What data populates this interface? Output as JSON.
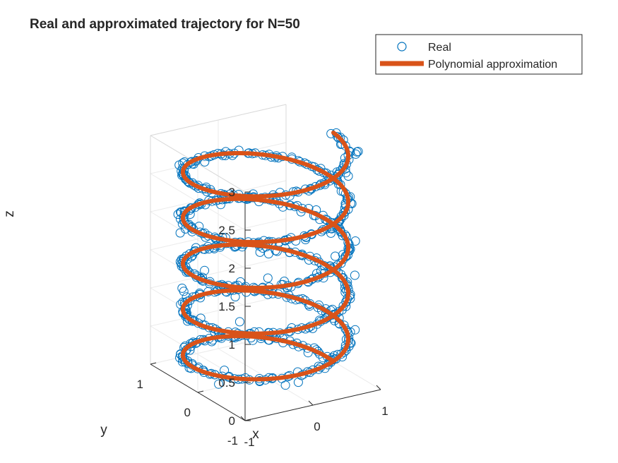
{
  "chart_data": {
    "type": "scatter3d",
    "title": "Real and approximated trajectory for N=50",
    "xlabel": "x",
    "ylabel": "y",
    "zlabel": "z",
    "xlim": [
      -1,
      1
    ],
    "ylim": [
      -1,
      1
    ],
    "zlim": [
      0,
      3
    ],
    "xticks": [
      {
        "value": -1,
        "label": "-1"
      },
      {
        "value": 0,
        "label": "0"
      },
      {
        "value": 1,
        "label": "1"
      }
    ],
    "yticks": [
      {
        "value": -1,
        "label": "-1"
      },
      {
        "value": 0,
        "label": "0"
      },
      {
        "value": 1,
        "label": "1"
      }
    ],
    "zticks": [
      {
        "value": 0,
        "label": "0"
      },
      {
        "value": 0.5,
        "label": "0.5"
      },
      {
        "value": 1,
        "label": "1"
      },
      {
        "value": 1.5,
        "label": "1.5"
      },
      {
        "value": 2,
        "label": "2"
      },
      {
        "value": 2.5,
        "label": "2.5"
      },
      {
        "value": 3,
        "label": "3"
      }
    ],
    "grid": true,
    "legend_position": "top-right outside",
    "helix": {
      "turns": 5,
      "z_start": 0,
      "z_end": 3,
      "radius": 1
    },
    "series": [
      {
        "name": "Real",
        "marker": "open-circle",
        "color": "#0072BD",
        "points": 700
      },
      {
        "name": "Polynomial approximation",
        "style": "thick-line",
        "color": "#D95319"
      }
    ]
  }
}
